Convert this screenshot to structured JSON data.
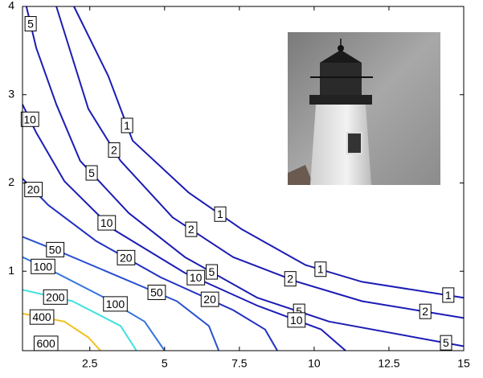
{
  "chart_data": {
    "type": "contour",
    "xlim": [
      0.25,
      15
    ],
    "ylim": [
      0.1,
      4
    ],
    "xticks": [
      2.5,
      5,
      7.5,
      10,
      12.5,
      15
    ],
    "yticks": [
      1,
      2,
      3,
      4
    ],
    "contours": [
      {
        "level": 1,
        "color": "#1c1cb4",
        "x": [
          1.97,
          3.12,
          3.93,
          5.81,
          7.56,
          9.71,
          11.6,
          15
        ],
        "y": [
          4,
          3.21,
          2.48,
          1.89,
          1.48,
          1.07,
          0.88,
          0.7
        ]
      },
      {
        "level": 2,
        "color": "#1c1cb4",
        "x": [
          1.38,
          2.45,
          3.53,
          5.27,
          7.29,
          9.44,
          11.6,
          15
        ],
        "y": [
          4,
          2.84,
          2.25,
          1.61,
          1.16,
          0.88,
          0.66,
          0.47
        ]
      },
      {
        "level": 5,
        "color": "#1c1cb4",
        "x": [
          0.38,
          0.71,
          1.38,
          2.18,
          3.8,
          5.68,
          8.1,
          10.5,
          15
        ],
        "y": [
          4,
          3.53,
          2.89,
          2.25,
          1.66,
          1.16,
          0.7,
          0.43,
          0.15
        ]
      },
      {
        "level": 10,
        "color": "#1c1cb8",
        "x": [
          0.25,
          0.71,
          1.65,
          3.26,
          5.68,
          8.1,
          10.24,
          11.05
        ],
        "y": [
          2.89,
          2.57,
          2.02,
          1.48,
          0.98,
          0.61,
          0.34,
          0.1
        ]
      },
      {
        "level": 20,
        "color": "#2030c0",
        "x": [
          0.25,
          1.11,
          2.72,
          4.87,
          7.29,
          8.36,
          8.77
        ],
        "y": [
          2.05,
          1.75,
          1.34,
          0.93,
          0.56,
          0.34,
          0.1
        ]
      },
      {
        "level": 50,
        "color": "#2a50d0",
        "x": [
          0.25,
          1.65,
          3.53,
          5.41,
          6.48,
          6.81
        ],
        "y": [
          1.39,
          1.2,
          0.93,
          0.66,
          0.38,
          0.1
        ]
      },
      {
        "level": 100,
        "color": "#3474e0",
        "x": [
          0.25,
          1.38,
          2.99,
          4.33,
          5
        ],
        "y": [
          1.16,
          0.98,
          0.7,
          0.43,
          0.1
        ]
      },
      {
        "level": 200,
        "color": "#40e0e0",
        "x": [
          0.25,
          1.92,
          3.53,
          4.06
        ],
        "y": [
          0.79,
          0.66,
          0.38,
          0.1
        ]
      },
      {
        "level": 400,
        "color": "#f0c020",
        "x": [
          0.25,
          1.65,
          2.45,
          2.86
        ],
        "y": [
          0.52,
          0.43,
          0.25,
          0.1
        ]
      },
      {
        "level": 600,
        "color": "#7a1010",
        "x": [
          0.98,
          1.24
        ],
        "y": [
          0.2,
          0.1
        ]
      }
    ]
  }
}
